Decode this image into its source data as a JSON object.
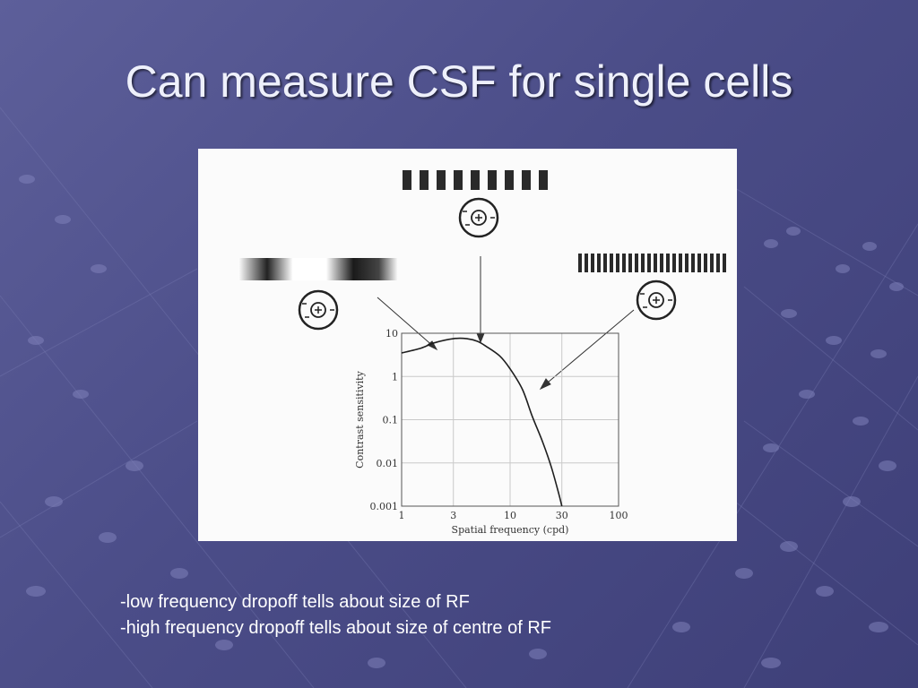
{
  "title": "Can measure CSF for single cells",
  "notes": [
    "-low frequency dropoff tells about size of RF",
    "-high frequency dropoff tells about size of centre of RF"
  ],
  "chart_data": {
    "type": "line",
    "xlabel": "Spatial frequency (cpd)",
    "ylabel": "Contrast sensitivity",
    "xscale": "log",
    "yscale": "log",
    "xlim": [
      1,
      100
    ],
    "ylim": [
      0.001,
      10
    ],
    "xticks": [
      "1",
      "3",
      "10",
      "30",
      "100"
    ],
    "yticks": [
      "10",
      "1",
      "0.1",
      "0.01",
      "0.001"
    ],
    "grid": true,
    "series": [
      {
        "x": [
          1,
          1.5,
          2,
          3,
          4,
          5,
          6,
          8,
          10,
          13,
          16,
          20,
          24,
          28,
          30
        ],
        "y": [
          3.5,
          4.5,
          6,
          7.5,
          7.5,
          6.5,
          5,
          3,
          1.5,
          0.5,
          0.12,
          0.03,
          0.008,
          0.002,
          0.001
        ]
      }
    ]
  },
  "colors": {
    "background": "#4b4d88",
    "title": "#eef0fb",
    "panel": "#fbfbfb",
    "ink": "#222222"
  },
  "icons": [
    "receptive-field-icon",
    "grating-stimulus"
  ]
}
